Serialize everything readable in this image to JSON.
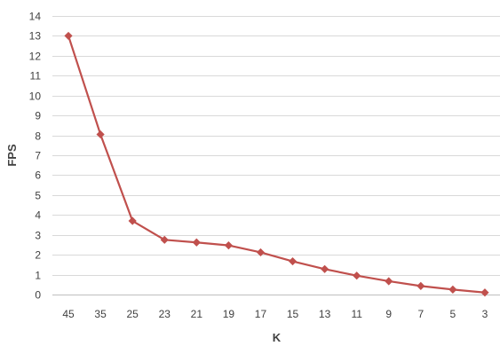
{
  "chart_data": {
    "type": "line",
    "title": "",
    "xlabel": "K",
    "ylabel": "FPS",
    "categories": [
      "45",
      "35",
      "25",
      "23",
      "21",
      "19",
      "17",
      "15",
      "13",
      "11",
      "9",
      "7",
      "5",
      "3"
    ],
    "series": [
      {
        "values": [
          13.0,
          8.05,
          3.7,
          2.75,
          2.62,
          2.47,
          2.12,
          1.67,
          1.28,
          0.95,
          0.67,
          0.43,
          0.25,
          0.1
        ]
      }
    ],
    "ylim": [
      0,
      14
    ],
    "yticks": [
      "0",
      "1",
      "2",
      "3",
      "4",
      "5",
      "6",
      "7",
      "8",
      "9",
      "10",
      "11",
      "12",
      "13",
      "14"
    ],
    "grid": true,
    "legend": "none",
    "series_color": "#c0504d",
    "grid_color": "#d9d9d9",
    "text_color": "#404040",
    "marker": "diamond"
  }
}
